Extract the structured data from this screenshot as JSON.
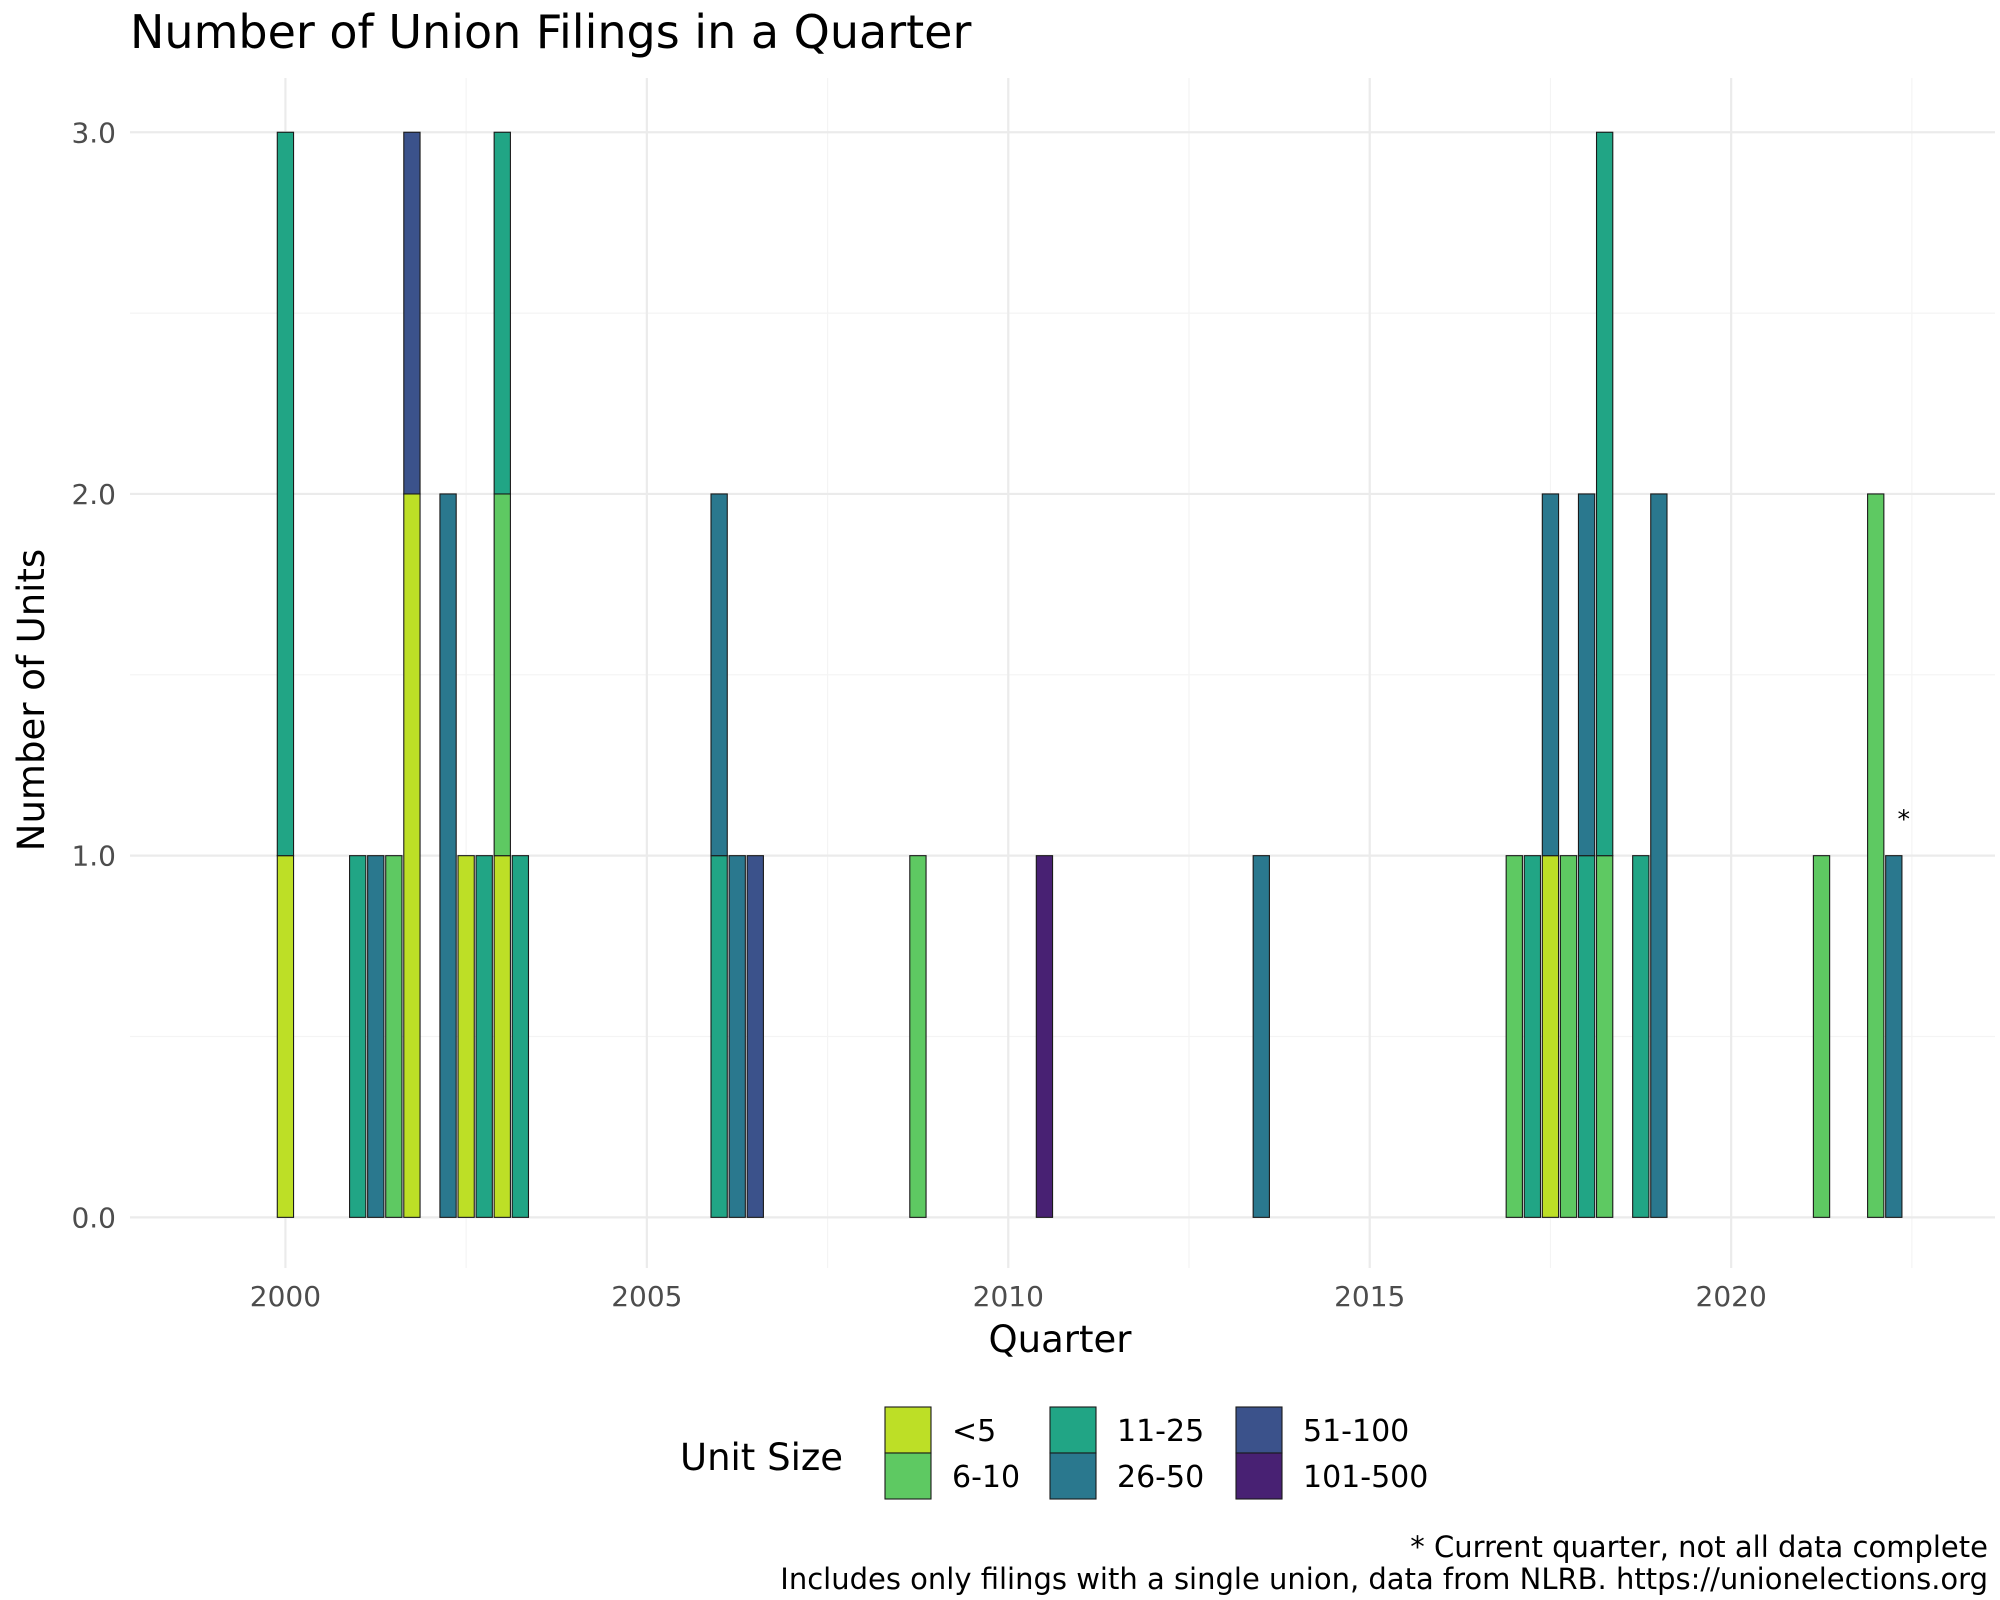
{
  "chart_data": {
    "type": "bar",
    "stacked": true,
    "title": "Number of Union Filings in a Quarter",
    "xlabel": "Quarter",
    "ylabel": "Number of Units",
    "xlim": [
      1997.85,
      2023.65
    ],
    "ylim": [
      -0.14,
      3.15
    ],
    "x_ticks": [
      2000,
      2005,
      2010,
      2015,
      2020
    ],
    "x_tick_labels": [
      "2000",
      "2005",
      "2010",
      "2015",
      "2020"
    ],
    "y_ticks": [
      0,
      1,
      2,
      3
    ],
    "y_tick_labels": [
      "0.0",
      "1.0",
      "2.0",
      "3.0"
    ],
    "grid": true,
    "legend": {
      "title": "Unit Size",
      "position": "bottom",
      "entries": [
        {
          "label": "<5",
          "color": "#bddf26"
        },
        {
          "label": "6-10",
          "color": "#5ec962"
        },
        {
          "label": "11-25",
          "color": "#21a585"
        },
        {
          "label": "26-50",
          "color": "#2a788e"
        },
        {
          "label": "51-100",
          "color": "#3b528b"
        },
        {
          "label": "101-500",
          "color": "#482173"
        }
      ]
    },
    "quarters": [
      {
        "x": "2000 Q1",
        "segments": [
          {
            "size": "<5",
            "count": 1
          },
          {
            "size": "11-25",
            "count": 2
          }
        ]
      },
      {
        "x": "2001 Q1",
        "segments": [
          {
            "size": "11-25",
            "count": 1
          }
        ]
      },
      {
        "x": "2001 Q2",
        "segments": [
          {
            "size": "26-50",
            "count": 1
          }
        ]
      },
      {
        "x": "2001 Q3",
        "segments": [
          {
            "size": "6-10",
            "count": 1
          }
        ]
      },
      {
        "x": "2001 Q4",
        "segments": [
          {
            "size": "<5",
            "count": 2
          },
          {
            "size": "51-100",
            "count": 1
          }
        ]
      },
      {
        "x": "2002 Q2",
        "segments": [
          {
            "size": "26-50",
            "count": 2
          }
        ]
      },
      {
        "x": "2002 Q3",
        "segments": [
          {
            "size": "<5",
            "count": 1
          }
        ]
      },
      {
        "x": "2002 Q4",
        "segments": [
          {
            "size": "11-25",
            "count": 1
          }
        ]
      },
      {
        "x": "2003 Q1",
        "segments": [
          {
            "size": "<5",
            "count": 1
          },
          {
            "size": "6-10",
            "count": 1
          },
          {
            "size": "11-25",
            "count": 1
          }
        ]
      },
      {
        "x": "2003 Q2",
        "segments": [
          {
            "size": "11-25",
            "count": 1
          }
        ]
      },
      {
        "x": "2006 Q1",
        "segments": [
          {
            "size": "11-25",
            "count": 1
          },
          {
            "size": "26-50",
            "count": 1
          }
        ]
      },
      {
        "x": "2006 Q2",
        "segments": [
          {
            "size": "26-50",
            "count": 1
          }
        ]
      },
      {
        "x": "2006 Q3",
        "segments": [
          {
            "size": "51-100",
            "count": 1
          }
        ]
      },
      {
        "x": "2008 Q4",
        "segments": [
          {
            "size": "6-10",
            "count": 1
          }
        ]
      },
      {
        "x": "2010 Q3",
        "segments": [
          {
            "size": "101-500",
            "count": 1
          }
        ]
      },
      {
        "x": "2013 Q3",
        "segments": [
          {
            "size": "26-50",
            "count": 1
          }
        ]
      },
      {
        "x": "2017 Q1",
        "segments": [
          {
            "size": "6-10",
            "count": 1
          }
        ]
      },
      {
        "x": "2017 Q2",
        "segments": [
          {
            "size": "11-25",
            "count": 1
          }
        ]
      },
      {
        "x": "2017 Q3",
        "segments": [
          {
            "size": "<5",
            "count": 1
          },
          {
            "size": "26-50",
            "count": 1
          }
        ]
      },
      {
        "x": "2017 Q4",
        "segments": [
          {
            "size": "6-10",
            "count": 1
          }
        ]
      },
      {
        "x": "2018 Q1",
        "segments": [
          {
            "size": "11-25",
            "count": 1
          },
          {
            "size": "26-50",
            "count": 1
          }
        ]
      },
      {
        "x": "2018 Q2",
        "segments": [
          {
            "size": "6-10",
            "count": 1
          },
          {
            "size": "11-25",
            "count": 2
          }
        ]
      },
      {
        "x": "2018 Q4",
        "segments": [
          {
            "size": "11-25",
            "count": 1
          }
        ]
      },
      {
        "x": "2019 Q1",
        "segments": [
          {
            "size": "26-50",
            "count": 2
          }
        ]
      },
      {
        "x": "2021 Q2",
        "segments": [
          {
            "size": "6-10",
            "count": 1
          }
        ]
      },
      {
        "x": "2022 Q1",
        "segments": [
          {
            "size": "6-10",
            "count": 2
          }
        ]
      },
      {
        "x": "2022 Q2",
        "segments": [
          {
            "size": "26-50",
            "count": 1
          }
        ]
      }
    ],
    "annotations": [
      {
        "text": "*",
        "x": "2022 Q2",
        "y": 1.1
      }
    ],
    "captions": [
      "* Current quarter, not all data complete",
      "Includes only filings with a single union, data from NLRB. https://unionelections.org"
    ]
  }
}
